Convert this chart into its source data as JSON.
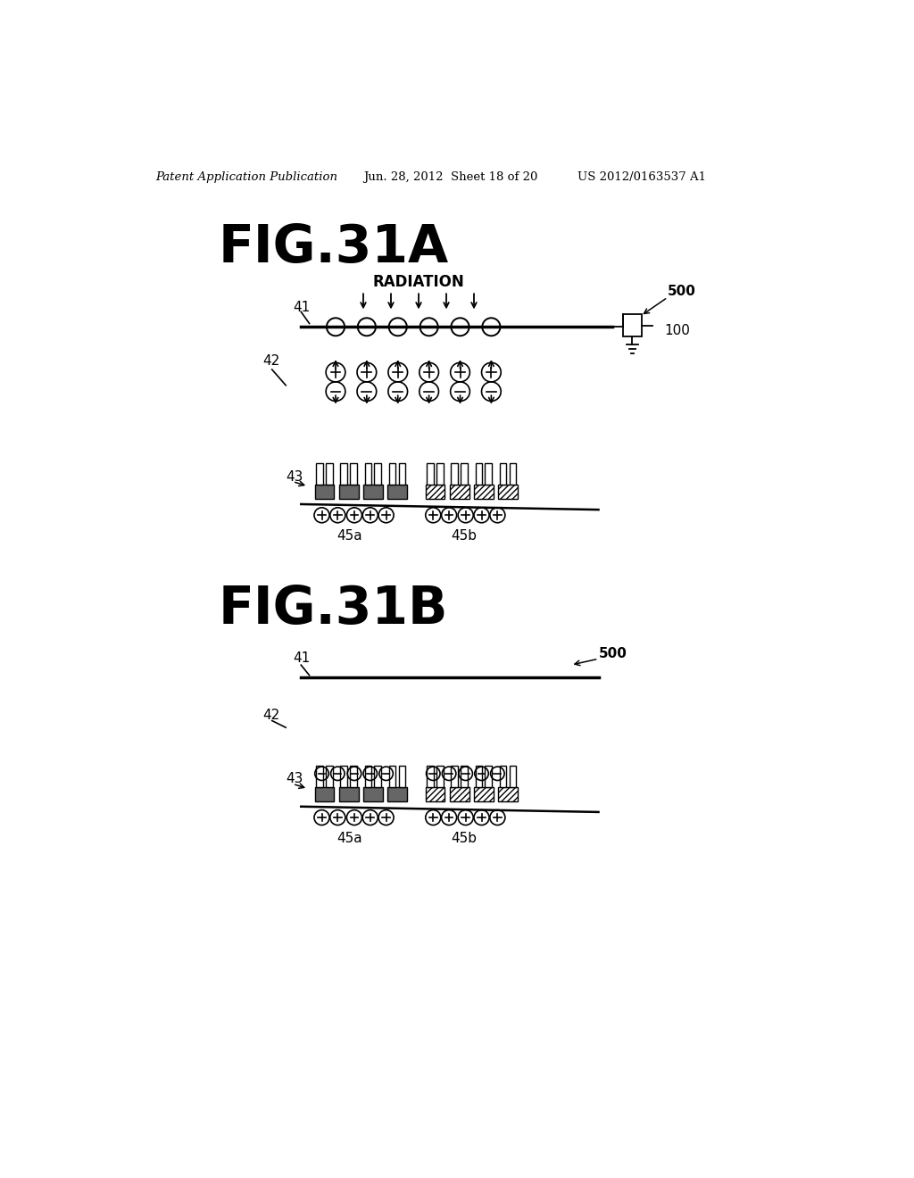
{
  "bg_color": "#ffffff",
  "header_text": "Patent Application Publication",
  "header_date": "Jun. 28, 2012  Sheet 18 of 20",
  "header_patent": "US 2012/0163537 A1",
  "fig31A_title": "FIG.31A",
  "fig31B_title": "FIG.31B",
  "label_radiation": "RADIATION",
  "label_500_A": "500",
  "label_500_B": "500",
  "label_100": "100",
  "label_41_A": "41",
  "label_42_A": "42",
  "label_43_A": "43",
  "label_45a_A": "45a",
  "label_45b_A": "45b",
  "label_41_B": "41",
  "label_42_B": "42",
  "label_43_B": "43",
  "label_45a_B": "45a",
  "label_45b_B": "45b"
}
